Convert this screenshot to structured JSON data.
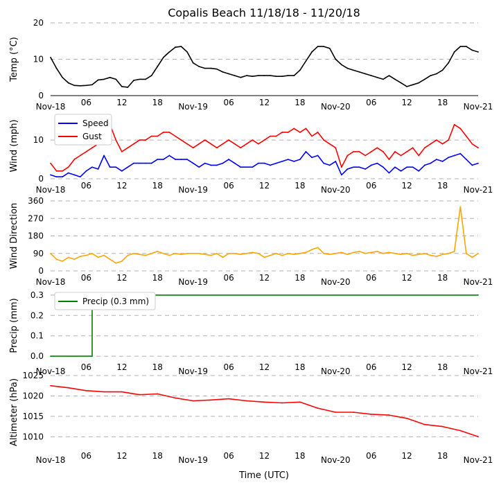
{
  "chart_data": [
    {
      "type": "line",
      "title": "Copalis Beach 11/18/18 - 11/20/18",
      "ylabel": "Temp ($^\\circ$C)",
      "ylabel_text": "Temp (°C)",
      "ylim": [
        0,
        20
      ],
      "yticks": [
        "0",
        "10",
        "20"
      ],
      "xticks": [
        "Nov-18",
        "06",
        "12",
        "18",
        "Nov-19",
        "06",
        "12",
        "18",
        "Nov-20",
        "06",
        "12",
        "18",
        "Nov-21"
      ],
      "grid": "horizontal dashed",
      "series": [
        {
          "color": "#000000",
          "x": [
            0,
            1,
            2,
            3,
            4,
            5,
            6,
            7,
            8,
            9,
            10,
            11,
            12,
            13,
            14,
            15,
            16,
            17,
            18,
            19,
            20,
            21,
            22,
            23,
            24,
            25,
            26,
            27,
            28,
            29,
            30,
            31,
            32,
            33,
            34,
            35,
            36,
            37,
            38,
            39,
            40,
            41,
            42,
            43,
            44,
            45,
            46,
            47,
            48,
            49,
            50,
            51,
            52,
            53,
            54,
            55,
            56,
            57,
            58,
            59,
            60,
            61,
            62,
            63,
            64,
            65,
            66,
            67,
            68,
            69,
            70,
            71,
            72
          ],
          "values": [
            10.5,
            7.5,
            5,
            3.5,
            2.8,
            2.7,
            2.8,
            3,
            4.3,
            4.5,
            5,
            4.5,
            2.5,
            2.3,
            4.2,
            4.5,
            4.5,
            5.5,
            8,
            10.5,
            12,
            13.3,
            13.5,
            12,
            9,
            8,
            7.5,
            7.5,
            7.3,
            6.5,
            6,
            5.5,
            5,
            5.5,
            5.3,
            5.5,
            5.5,
            5.5,
            5.3,
            5.3,
            5.5,
            5.5,
            7,
            9.5,
            12,
            13.5,
            13.5,
            13,
            10,
            8.5,
            7.5,
            7,
            6.5,
            6,
            5.5,
            5,
            4.5,
            5.5,
            4.5,
            3.5,
            2.5,
            3,
            3.5,
            4.5,
            5.5,
            6,
            7,
            9,
            12,
            13.5,
            13.5,
            12.5,
            12
          ]
        }
      ]
    },
    {
      "type": "line",
      "ylabel": "Wind (mph)",
      "ylim": [
        0,
        17
      ],
      "yticks": [
        "0",
        "10"
      ],
      "xticks": [
        "Nov-18",
        "06",
        "12",
        "18",
        "Nov-19",
        "06",
        "12",
        "18",
        "Nov-20",
        "06",
        "12",
        "18",
        "Nov-21"
      ],
      "grid": "horizontal dashed",
      "legend": "upper-left",
      "series": [
        {
          "name": "Speed",
          "color": "#0000ff",
          "x": [
            0,
            1,
            2,
            3,
            4,
            5,
            6,
            7,
            8,
            9,
            10,
            11,
            12,
            13,
            14,
            15,
            16,
            17,
            18,
            19,
            20,
            21,
            22,
            23,
            24,
            25,
            26,
            27,
            28,
            29,
            30,
            31,
            32,
            33,
            34,
            35,
            36,
            37,
            38,
            39,
            40,
            41,
            42,
            43,
            44,
            45,
            46,
            47,
            48,
            49,
            50,
            51,
            52,
            53,
            54,
            55,
            56,
            57,
            58,
            59,
            60,
            61,
            62,
            63,
            64,
            65,
            66,
            67,
            68,
            69,
            70,
            71,
            72
          ],
          "values": [
            1,
            0.5,
            0.5,
            1.5,
            1,
            0.5,
            2,
            3,
            2.5,
            6,
            3,
            3,
            2,
            3,
            4,
            4,
            4,
            4,
            5,
            5,
            6,
            5,
            5,
            5,
            4,
            3,
            4,
            3.5,
            3.5,
            4,
            5,
            4,
            3,
            3,
            3,
            4,
            4,
            3.5,
            4,
            4.5,
            5,
            4.5,
            5,
            7,
            5.5,
            6,
            4,
            3.5,
            4.5,
            1,
            2.5,
            3,
            3,
            2.5,
            3.5,
            4,
            3,
            1.5,
            3,
            2,
            3,
            3,
            2,
            3.5,
            4,
            5,
            4.5,
            5.5,
            6,
            6.5,
            5,
            3.5,
            4
          ]
        },
        {
          "name": "Gust",
          "color": "#ff0000",
          "x": [
            0,
            1,
            2,
            3,
            4,
            5,
            6,
            7,
            8,
            9,
            10,
            11,
            12,
            13,
            14,
            15,
            16,
            17,
            18,
            19,
            20,
            21,
            22,
            23,
            24,
            25,
            26,
            27,
            28,
            29,
            30,
            31,
            32,
            33,
            34,
            35,
            36,
            37,
            38,
            39,
            40,
            41,
            42,
            43,
            44,
            45,
            46,
            47,
            48,
            49,
            50,
            51,
            52,
            53,
            54,
            55,
            56,
            57,
            58,
            59,
            60,
            61,
            62,
            63,
            64,
            65,
            66,
            67,
            68,
            69,
            70,
            71,
            72
          ],
          "values": [
            4,
            2,
            2,
            3,
            5,
            6,
            7,
            8,
            9,
            13,
            14,
            10,
            7,
            8,
            9,
            10,
            10,
            11,
            11,
            12,
            12,
            11,
            10,
            9,
            8,
            9,
            10,
            9,
            8,
            9,
            10,
            9,
            8,
            9,
            10,
            9,
            10,
            11,
            11,
            12,
            12,
            13,
            12,
            13,
            11,
            12,
            10,
            9,
            8,
            3,
            6,
            7,
            7,
            6,
            7,
            8,
            7,
            5,
            7,
            6,
            7,
            8,
            6,
            8,
            9,
            10,
            9,
            10,
            14,
            13,
            11,
            9,
            8
          ]
        }
      ]
    },
    {
      "type": "line",
      "ylabel": "Wind Direction",
      "ylim": [
        0,
        360
      ],
      "yticks": [
        "0",
        "90",
        "180",
        "270",
        "360"
      ],
      "xticks": [
        "Nov-18",
        "06",
        "12",
        "18",
        "Nov-19",
        "06",
        "12",
        "18",
        "Nov-20",
        "06",
        "12",
        "18",
        "Nov-21"
      ],
      "grid": "horizontal dashed",
      "series": [
        {
          "color": "#ffa500",
          "x": [
            0,
            1,
            2,
            3,
            4,
            5,
            6,
            7,
            8,
            9,
            10,
            11,
            12,
            13,
            14,
            15,
            16,
            17,
            18,
            19,
            20,
            21,
            22,
            23,
            24,
            25,
            26,
            27,
            28,
            29,
            30,
            31,
            32,
            33,
            34,
            35,
            36,
            37,
            38,
            39,
            40,
            41,
            42,
            43,
            44,
            45,
            46,
            47,
            48,
            49,
            50,
            51,
            52,
            53,
            54,
            55,
            56,
            57,
            58,
            59,
            60,
            61,
            62,
            63,
            64,
            65,
            66,
            67,
            68,
            69,
            70,
            71,
            72
          ],
          "values": [
            90,
            60,
            50,
            70,
            60,
            75,
            80,
            90,
            70,
            80,
            60,
            40,
            50,
            80,
            90,
            85,
            80,
            90,
            100,
            90,
            80,
            90,
            85,
            90,
            90,
            90,
            85,
            80,
            90,
            70,
            90,
            90,
            85,
            90,
            95,
            90,
            70,
            80,
            90,
            80,
            90,
            85,
            90,
            95,
            110,
            120,
            90,
            85,
            90,
            95,
            85,
            95,
            100,
            90,
            95,
            100,
            90,
            95,
            90,
            85,
            90,
            80,
            85,
            90,
            80,
            75,
            85,
            90,
            100,
            330,
            90,
            70,
            90
          ]
        }
      ]
    },
    {
      "type": "line",
      "ylabel": "Precip (mm)",
      "ylim": [
        -0.02,
        0.32
      ],
      "yticks": [
        "0.0",
        "0.1",
        "0.2",
        "0.3"
      ],
      "xticks": [
        "Nov-18",
        "06",
        "12",
        "18",
        "Nov-19",
        "06",
        "12",
        "18",
        "Nov-20",
        "06",
        "12",
        "18",
        "Nov-21"
      ],
      "grid": "horizontal dashed",
      "legend": "upper-left",
      "series": [
        {
          "name": "Precip (0.3 mm)",
          "color": "#008000",
          "x": [
            0,
            7,
            7,
            72
          ],
          "values": [
            0,
            0,
            0.3,
            0.3
          ]
        }
      ]
    },
    {
      "type": "line",
      "ylabel": "Altimeter (hPa)",
      "xlabel": "Time (UTC)",
      "ylim": [
        1007,
        1025
      ],
      "yticks": [
        "1010",
        "1015",
        "1020",
        "1025"
      ],
      "xticks": [
        "Nov-18",
        "06",
        "12",
        "18",
        "Nov-19",
        "06",
        "12",
        "18",
        "Nov-20",
        "06",
        "12",
        "18",
        "Nov-21"
      ],
      "grid": "horizontal dashed",
      "series": [
        {
          "color": "#ff0000",
          "x": [
            0,
            3,
            6,
            9,
            12,
            15,
            18,
            21,
            24,
            27,
            30,
            33,
            36,
            39,
            42,
            45,
            48,
            51,
            54,
            57,
            60,
            63,
            66,
            69,
            72
          ],
          "values": [
            1022.5,
            1022,
            1021.3,
            1021,
            1021,
            1020.3,
            1020.5,
            1019.5,
            1018.8,
            1019,
            1019.3,
            1018.8,
            1018.5,
            1018.3,
            1018.5,
            1017,
            1016,
            1016,
            1015.5,
            1015.3,
            1014.5,
            1013,
            1012.5,
            1011.5,
            1010
          ]
        }
      ]
    }
  ]
}
